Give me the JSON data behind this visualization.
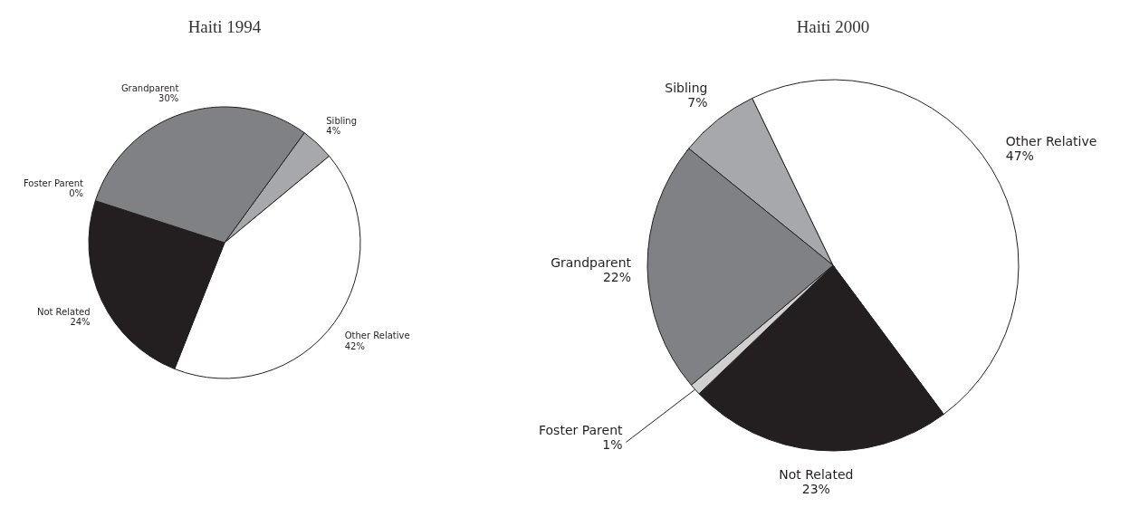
{
  "chart_data": [
    {
      "type": "pie",
      "title": "Haiti 1994",
      "categories": [
        "Sibling",
        "Other Relative",
        "Not Related",
        "Foster Parent",
        "Grandparent"
      ],
      "values": [
        4,
        42,
        24,
        0,
        30
      ],
      "value_labels": [
        "4%",
        "42%",
        "24%",
        "0%",
        "30%"
      ],
      "colors": [
        "#a7a8ab",
        "#ffffff",
        "#231f20",
        null,
        "#808184"
      ]
    },
    {
      "type": "pie",
      "title": "Haiti 2000",
      "categories": [
        "Sibling",
        "Other Relative",
        "Not Related",
        "Foster Parent",
        "Grandparent"
      ],
      "values": [
        7,
        47,
        23,
        1,
        22
      ],
      "value_labels": [
        "7%",
        "47%",
        "23%",
        "1%",
        "22%"
      ],
      "colors": [
        "#a7a8ab",
        "#ffffff",
        "#231f20",
        "#d0d0d0",
        "#808184"
      ]
    }
  ]
}
